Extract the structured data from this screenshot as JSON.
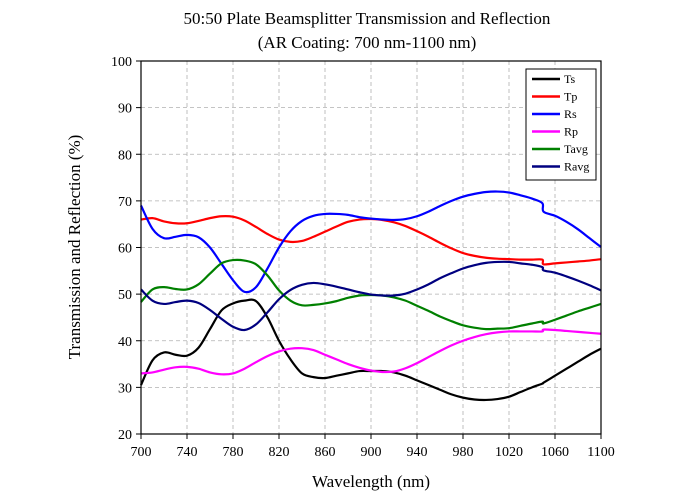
{
  "chart_data": {
    "type": "line",
    "title": "50:50 Plate Beamsplitter  Transmission and Reflection",
    "subtitle": "(AR Coating: 700 nm-1100 nm)",
    "xlabel": "Wavelength (nm)",
    "ylabel": "Transmission and Reflection (%)",
    "xlim": [
      700,
      1100
    ],
    "ylim": [
      20,
      100
    ],
    "xticks": [
      700,
      740,
      780,
      820,
      860,
      900,
      940,
      980,
      1020,
      1060,
      1100
    ],
    "yticks": [
      20,
      30,
      40,
      50,
      60,
      70,
      80,
      90,
      100
    ],
    "grid": true,
    "legend_position": "top-right",
    "x": [
      700,
      710,
      720,
      730,
      740,
      750,
      760,
      770,
      780,
      790,
      800,
      810,
      820,
      830,
      840,
      850,
      860,
      870,
      880,
      890,
      900,
      910,
      920,
      930,
      940,
      950,
      960,
      970,
      980,
      990,
      1000,
      1010,
      1020,
      1030,
      1040,
      1049,
      1050,
      1060,
      1070,
      1080,
      1090,
      1100
    ],
    "series": [
      {
        "name": "Ts",
        "color": "#000000",
        "values": [
          30.5,
          35.8,
          37.5,
          37.0,
          36.8,
          38.5,
          42.5,
          46.5,
          48.0,
          48.6,
          48.5,
          45.0,
          40.0,
          36.0,
          33.0,
          32.2,
          32.0,
          32.5,
          33.0,
          33.5,
          33.5,
          33.5,
          33.2,
          32.5,
          31.5,
          30.5,
          29.5,
          28.5,
          27.8,
          27.4,
          27.3,
          27.5,
          28.0,
          29.0,
          30.0,
          30.8,
          31.0,
          32.5,
          34.0,
          35.5,
          37.0,
          38.3
        ]
      },
      {
        "name": "Tp",
        "color": "#ff0000",
        "values": [
          66.0,
          66.3,
          65.6,
          65.2,
          65.2,
          65.7,
          66.3,
          66.7,
          66.6,
          65.8,
          64.4,
          62.9,
          61.7,
          61.2,
          61.4,
          62.3,
          63.4,
          64.5,
          65.5,
          66.0,
          66.1,
          65.9,
          65.4,
          64.6,
          63.5,
          62.3,
          61.0,
          59.8,
          58.8,
          58.2,
          57.8,
          57.6,
          57.5,
          57.4,
          57.4,
          57.4,
          56.4,
          56.6,
          56.8,
          57.0,
          57.2,
          57.5
        ]
      },
      {
        "name": "Rs",
        "color": "#0000ff",
        "values": [
          69.0,
          64.0,
          62.0,
          62.3,
          62.7,
          62.2,
          60.0,
          56.5,
          53.0,
          50.5,
          51.5,
          55.5,
          60.0,
          63.5,
          65.7,
          66.8,
          67.2,
          67.2,
          67.0,
          66.5,
          66.2,
          66.0,
          65.9,
          66.1,
          66.7,
          67.7,
          68.9,
          70.0,
          70.9,
          71.5,
          71.9,
          72.0,
          71.8,
          71.2,
          70.5,
          69.5,
          67.7,
          66.8,
          65.5,
          63.9,
          62.0,
          60.1
        ]
      },
      {
        "name": "Rp",
        "color": "#ff00ff",
        "values": [
          33.0,
          33.2,
          33.8,
          34.3,
          34.4,
          34.0,
          33.2,
          32.8,
          33.0,
          34.0,
          35.4,
          36.7,
          37.7,
          38.3,
          38.4,
          38.0,
          37.0,
          36.0,
          35.0,
          34.2,
          33.6,
          33.3,
          33.4,
          34.1,
          35.2,
          36.5,
          37.8,
          39.0,
          40.0,
          40.8,
          41.4,
          41.8,
          42.0,
          42.0,
          42.0,
          42.0,
          42.4,
          42.3,
          42.1,
          41.9,
          41.7,
          41.5
        ]
      },
      {
        "name": "Tavg",
        "color": "#008000",
        "values": [
          48.3,
          51.0,
          51.5,
          51.1,
          51.0,
          52.1,
          54.4,
          56.6,
          57.3,
          57.2,
          56.4,
          54.0,
          50.8,
          48.6,
          47.6,
          47.7,
          48.0,
          48.5,
          49.2,
          49.7,
          49.8,
          49.7,
          49.3,
          48.6,
          47.5,
          46.4,
          45.2,
          44.2,
          43.3,
          42.8,
          42.5,
          42.6,
          42.7,
          43.2,
          43.7,
          44.1,
          43.7,
          44.5,
          45.4,
          46.3,
          47.1,
          47.9
        ]
      },
      {
        "name": "Ravg",
        "color": "#000080",
        "values": [
          51.0,
          48.6,
          47.9,
          48.3,
          48.6,
          48.1,
          46.6,
          44.7,
          43.0,
          42.3,
          43.5,
          46.1,
          48.9,
          50.9,
          52.0,
          52.4,
          52.1,
          51.6,
          51.0,
          50.4,
          49.9,
          49.7,
          49.7,
          50.1,
          51.0,
          52.1,
          53.4,
          54.5,
          55.5,
          56.2,
          56.7,
          56.9,
          56.9,
          56.6,
          56.3,
          55.8,
          55.1,
          54.6,
          53.8,
          52.9,
          51.9,
          50.8
        ]
      }
    ]
  }
}
